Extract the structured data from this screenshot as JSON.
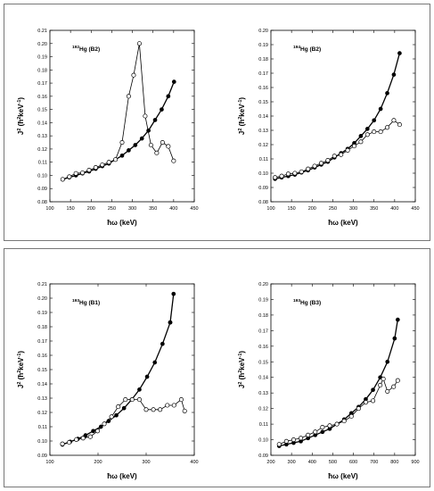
{
  "chart_data": [
    {
      "type": "line",
      "annotation": "192Hg (B2)",
      "annotation_sup": "192",
      "annotation_main": "Hg (B2)",
      "xlabel": "ħω (keV)",
      "ylabel": "J2 (ħ2keV-1)",
      "xlim": [
        100,
        450
      ],
      "ylim": [
        0.08,
        0.21
      ],
      "xticks": [
        100,
        150,
        200,
        250,
        300,
        350,
        400,
        450
      ],
      "yticks": [
        0.08,
        0.09,
        0.1,
        0.11,
        0.12,
        0.13,
        0.14,
        0.15,
        0.16,
        0.17,
        0.18,
        0.19,
        0.2,
        0.21
      ],
      "series": [
        {
          "marker": "filled",
          "x": [
            131,
            147,
            163,
            179,
            195,
            211,
            227,
            243,
            259,
            275,
            291,
            307,
            323,
            339,
            355,
            371,
            387,
            401
          ],
          "y": [
            0.097,
            0.0985,
            0.1,
            0.1015,
            0.103,
            0.105,
            0.107,
            0.109,
            0.112,
            0.115,
            0.119,
            0.123,
            0.128,
            0.134,
            0.142,
            0.15,
            0.16,
            0.171
          ]
        },
        {
          "marker": "open",
          "x": [
            131,
            147,
            163,
            179,
            195,
            211,
            227,
            243,
            259,
            275,
            291,
            303,
            317,
            331,
            345,
            359,
            373,
            387,
            400
          ],
          "y": [
            0.097,
            0.099,
            0.1015,
            0.102,
            0.104,
            0.106,
            0.108,
            0.11,
            0.112,
            0.125,
            0.16,
            0.176,
            0.2,
            0.145,
            0.123,
            0.117,
            0.125,
            0.122,
            0.111
          ]
        }
      ]
    },
    {
      "type": "line",
      "annotation": "194Hg (B2)",
      "annotation_sup": "194",
      "annotation_main": "Hg (B2)",
      "xlabel": "ħω (keV)",
      "ylabel": "J2 (ħ2keV-1)",
      "xlim": [
        100,
        450
      ],
      "ylim": [
        0.08,
        0.2
      ],
      "xticks": [
        100,
        150,
        200,
        250,
        300,
        350,
        400,
        450
      ],
      "yticks": [
        0.08,
        0.09,
        0.1,
        0.11,
        0.12,
        0.13,
        0.14,
        0.15,
        0.16,
        0.17,
        0.18,
        0.19,
        0.2
      ],
      "series": [
        {
          "marker": "filled",
          "x": [
            110,
            126,
            142,
            158,
            174,
            190,
            206,
            222,
            238,
            254,
            270,
            286,
            302,
            318,
            334,
            350,
            366,
            382,
            398,
            412
          ],
          "y": [
            0.096,
            0.097,
            0.098,
            0.099,
            0.1005,
            0.102,
            0.104,
            0.106,
            0.108,
            0.111,
            0.114,
            0.117,
            0.121,
            0.126,
            0.131,
            0.137,
            0.145,
            0.156,
            0.169,
            0.184
          ]
        },
        {
          "marker": "open",
          "x": [
            110,
            126,
            142,
            158,
            174,
            190,
            206,
            222,
            238,
            254,
            270,
            286,
            302,
            318,
            334,
            350,
            366,
            382,
            398,
            412
          ],
          "y": [
            0.097,
            0.098,
            0.0995,
            0.1,
            0.101,
            0.103,
            0.105,
            0.107,
            0.109,
            0.112,
            0.113,
            0.116,
            0.119,
            0.122,
            0.127,
            0.129,
            0.129,
            0.132,
            0.137,
            0.134
          ]
        }
      ]
    },
    {
      "type": "line",
      "annotation": "193Hg (B1)",
      "annotation_sup": "193",
      "annotation_main": "Hg (B1)",
      "xlabel": "ħω (keV)",
      "ylabel": "J2 (ħ2keV-1)",
      "xlim": [
        100,
        400
      ],
      "ylim": [
        0.09,
        0.21
      ],
      "xticks": [
        100,
        200,
        300,
        400
      ],
      "yticks": [
        0.09,
        0.1,
        0.11,
        0.12,
        0.13,
        0.14,
        0.15,
        0.16,
        0.17,
        0.18,
        0.19,
        0.2,
        0.21
      ],
      "series": [
        {
          "marker": "filled",
          "x": [
            126,
            142,
            158,
            174,
            190,
            206,
            222,
            238,
            254,
            270,
            286,
            302,
            318,
            334,
            350
          ],
          "y": [
            0.0975,
            0.0995,
            0.1015,
            0.104,
            0.107,
            0.11,
            0.114,
            0.118,
            0.123,
            0.129,
            0.136,
            0.145,
            0.155,
            0.168,
            0.183
          ]
        },
        {
          "marker": "filled",
          "x": [
            350,
            357
          ],
          "y": [
            0.183,
            0.203
          ]
        },
        {
          "marker": "open",
          "x": [
            126,
            140,
            155,
            169,
            184,
            199,
            213,
            228,
            242,
            257,
            271,
            286,
            300,
            315,
            329,
            344,
            358,
            373,
            380
          ],
          "y": [
            0.098,
            0.099,
            0.101,
            0.102,
            0.103,
            0.107,
            0.112,
            0.117,
            0.124,
            0.129,
            0.129,
            0.129,
            0.122,
            0.122,
            0.122,
            0.125,
            0.125,
            0.129,
            0.121
          ]
        }
      ]
    },
    {
      "type": "line",
      "annotation": "193Hg (B3)",
      "annotation_sup": "193",
      "annotation_main": "Hg (B3)",
      "xlabel": "ħω (keV)",
      "ylabel": "J2 (ħ2keV-1)",
      "xlim": [
        200,
        900
      ],
      "ylim": [
        0.09,
        0.2
      ],
      "xticks": [
        200,
        300,
        400,
        500,
        600,
        700,
        800,
        900
      ],
      "yticks": [
        0.09,
        0.1,
        0.11,
        0.12,
        0.13,
        0.14,
        0.15,
        0.16,
        0.17,
        0.18,
        0.19,
        0.2
      ],
      "series": [
        {
          "marker": "filled",
          "x": [
            240,
            275,
            310,
            345,
            380,
            415,
            450,
            485,
            520,
            555,
            590,
            625,
            660,
            695,
            730,
            765,
            800,
            815
          ],
          "y": [
            0.096,
            0.097,
            0.098,
            0.099,
            0.101,
            0.103,
            0.105,
            0.107,
            0.11,
            0.113,
            0.117,
            0.121,
            0.126,
            0.132,
            0.14,
            0.15,
            0.165,
            0.177
          ]
        },
        {
          "marker": "open",
          "x": [
            240,
            275,
            310,
            345,
            380,
            415,
            450,
            485,
            520,
            555,
            590,
            625,
            660,
            695,
            730,
            745,
            765,
            795,
            815
          ],
          "y": [
            0.097,
            0.099,
            0.1,
            0.101,
            0.103,
            0.105,
            0.108,
            0.109,
            0.11,
            0.112,
            0.115,
            0.12,
            0.124,
            0.125,
            0.135,
            0.139,
            0.131,
            0.134,
            0.138
          ]
        }
      ]
    }
  ]
}
